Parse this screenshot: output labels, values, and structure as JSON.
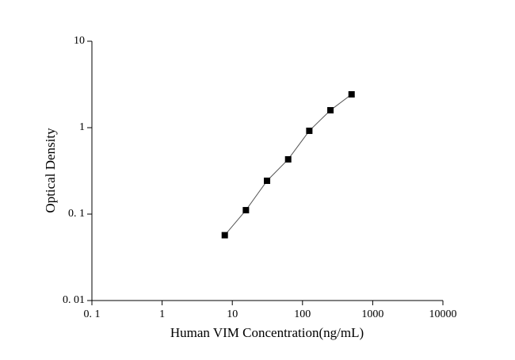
{
  "chart_data": {
    "type": "scatter",
    "x_label": "Human VIM Concentration(ng/mL)",
    "y_label": "Optical Density",
    "x_scale": "log",
    "y_scale": "log",
    "xlim": [
      0.1,
      10000
    ],
    "ylim": [
      0.01,
      10
    ],
    "xticks": [
      {
        "value": 0.1,
        "label": "0. 1"
      },
      1,
      10,
      100,
      1000,
      10000
    ],
    "yticks": [
      {
        "value": 0.01,
        "label": "0. 01"
      },
      {
        "value": 0.1,
        "label": "0. 1"
      },
      1,
      10
    ],
    "series": [
      {
        "type": "scatter",
        "color": "#000000",
        "x": [
          7.8125,
          15.625,
          31.25,
          62.5,
          125,
          250,
          500
        ],
        "values": [
          0.057,
          0.111,
          0.243,
          0.43,
          0.92,
          1.59,
          2.43
        ]
      },
      {
        "type": "line",
        "color": "#555555",
        "x": [
          7.8125,
          15.625,
          31.25,
          62.5,
          125,
          250,
          500
        ],
        "values": [
          0.057,
          0.111,
          0.243,
          0.43,
          0.92,
          1.59,
          2.43
        ]
      }
    ]
  }
}
